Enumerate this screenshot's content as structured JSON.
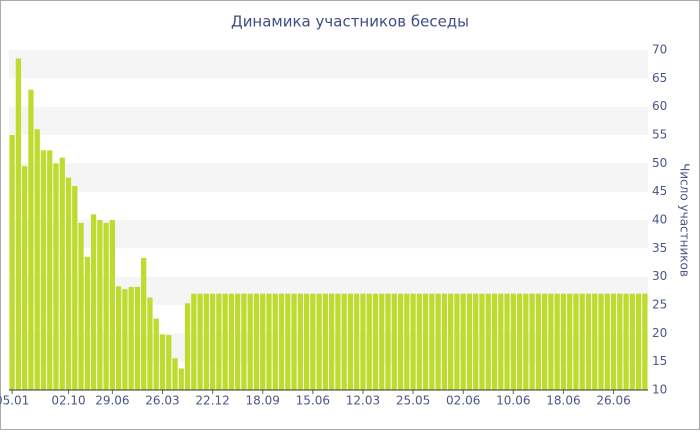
{
  "chart_data": {
    "type": "bar",
    "title": "Динамика участников беседы",
    "y_axis_label": "Число участников",
    "categories": [
      "05.01",
      null,
      null,
      null,
      null,
      null,
      null,
      null,
      null,
      "02.10",
      null,
      null,
      null,
      null,
      null,
      null,
      "29.06",
      null,
      null,
      null,
      null,
      null,
      null,
      null,
      "26.03",
      null,
      null,
      null,
      null,
      null,
      null,
      null,
      "22.12",
      null,
      null,
      null,
      null,
      null,
      null,
      null,
      "18.09",
      null,
      null,
      null,
      null,
      null,
      null,
      null,
      "15.06",
      null,
      null,
      null,
      null,
      null,
      null,
      null,
      "12.03",
      null,
      null,
      null,
      null,
      null,
      null,
      null,
      "25.05",
      null,
      null,
      null,
      null,
      null,
      null,
      null,
      "02.06",
      null,
      null,
      null,
      null,
      null,
      null,
      null,
      "10.06",
      null,
      null,
      null,
      null,
      null,
      null,
      null,
      "18.06",
      null,
      null,
      null,
      null,
      null,
      null,
      null,
      "26.06",
      null,
      null,
      null,
      null,
      null
    ],
    "values": [
      55,
      68.5,
      49.5,
      63,
      56,
      52.3,
      52.3,
      50,
      51,
      47.5,
      46,
      39.5,
      33.5,
      41,
      40,
      39.5,
      40,
      28.3,
      27.8,
      28.2,
      28.2,
      33.3,
      26.3,
      22.6,
      19.8,
      19.7,
      15.6,
      13.8,
      25.3,
      27,
      27,
      27,
      27,
      27,
      27,
      27,
      27,
      27,
      27,
      27,
      27,
      27,
      27,
      27,
      27,
      27,
      27,
      27,
      27,
      27,
      27,
      27,
      27,
      27,
      27,
      27,
      27,
      27,
      27,
      27,
      27,
      27,
      27,
      27,
      27,
      27,
      27,
      27,
      27,
      27,
      27,
      27,
      27,
      27,
      27,
      27,
      27,
      27,
      27,
      27,
      27,
      27,
      27,
      27,
      27,
      27,
      27,
      27,
      27,
      27,
      27,
      27,
      27,
      27,
      27,
      27,
      27,
      27,
      27,
      27,
      27,
      27
    ],
    "color": "#bddc2f",
    "ylim": [
      10,
      70
    ],
    "yticks": [
      10,
      15,
      20,
      25,
      30,
      35,
      40,
      45,
      50,
      55,
      60,
      65,
      70
    ],
    "y_axis_side": "right",
    "grid": true
  }
}
